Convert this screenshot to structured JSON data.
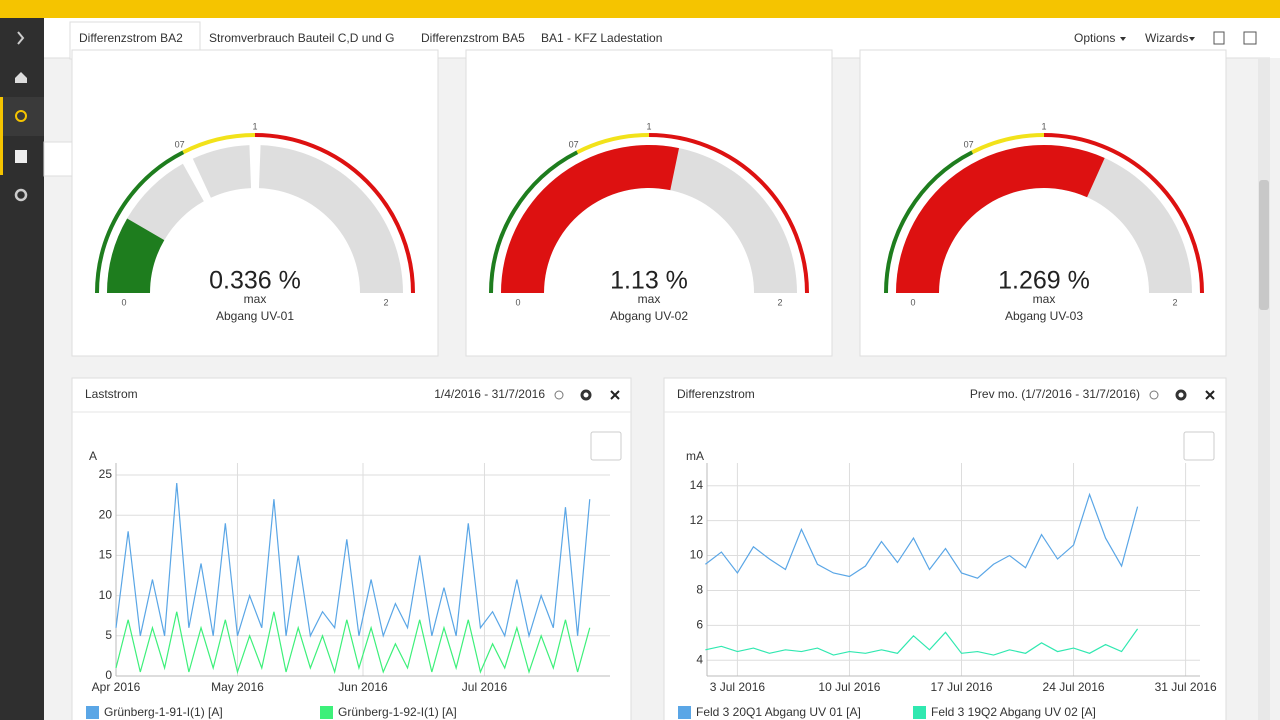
{
  "tabs": [
    "Differenzstrom BA2",
    "Stromverbrauch Bauteil C,D und G",
    "Differenzstrom BA5",
    "BA1 - KFZ Ladestation"
  ],
  "menu": [
    "Options",
    "Wizards"
  ],
  "gauges": [
    {
      "value": 0.336,
      "value_label": "0.336 %",
      "caption": "max",
      "name": "Abgang UV-01",
      "ticks": [
        0,
        {
          "value": 0.7,
          "label": "07"
        },
        1,
        2
      ],
      "colors": [
        "#1e7d1e",
        "#f2e21a",
        "#dd1111"
      ]
    },
    {
      "value": 1.13,
      "value_label": "1.13 %",
      "caption": "max",
      "name": "Abgang UV-02",
      "ticks": [
        0,
        {
          "value": 0.7,
          "label": "07"
        },
        1,
        2
      ],
      "colors": [
        "#1e7d1e",
        "#f2e21a",
        "#dd1111"
      ]
    },
    {
      "value": 1.269,
      "value_label": "1.269 %",
      "caption": "max",
      "name": "Abgang UV-03",
      "ticks": [
        0,
        {
          "value": 0.7,
          "label": "07"
        },
        1,
        2
      ],
      "colors": [
        "#1e7d1e",
        "#f2e21a",
        "#dd1111"
      ]
    }
  ],
  "chart_data": [
    {
      "type": "line",
      "title": "Laststrom",
      "range_label": "1/4/2016 - 31/7/2016",
      "y_label": "A",
      "grid": true,
      "x": [
        0,
        3,
        6,
        9,
        12,
        15,
        18,
        21,
        24,
        27,
        30,
        33,
        36,
        39,
        42,
        45,
        48,
        51,
        54,
        57,
        60,
        63,
        66,
        69,
        72,
        75,
        78,
        81,
        84,
        87,
        90,
        93,
        96,
        99,
        102,
        105,
        108,
        111,
        114,
        117
      ],
      "xlim": [
        0,
        122
      ],
      "xticks": [
        {
          "value": 0,
          "label": "Apr 2016"
        },
        {
          "value": 30,
          "label": "May 2016"
        },
        {
          "value": 61,
          "label": "Jun 2016"
        },
        {
          "value": 91,
          "label": "Jul 2016"
        }
      ],
      "ylim": [
        0,
        26.5
      ],
      "yticks": [
        0,
        5,
        10,
        15,
        20,
        25
      ],
      "series": [
        {
          "name": "Grünberg-1-91-I(1) [A]",
          "color": "#5aa6e6",
          "values": [
            6,
            18,
            5,
            12,
            5,
            24,
            6,
            14,
            5,
            19,
            5,
            10,
            6,
            22,
            5,
            15,
            5,
            8,
            6,
            17,
            5,
            12,
            5,
            9,
            6,
            15,
            5,
            11,
            5,
            19,
            6,
            8,
            5,
            12,
            5,
            10,
            6,
            21,
            5,
            22
          ]
        },
        {
          "name": "Grünberg-1-92-I(1) [A]",
          "color": "#3df07a",
          "values": [
            1,
            7,
            0.5,
            6,
            1,
            8,
            0.5,
            6,
            1,
            7,
            0.5,
            5,
            1,
            8,
            0.5,
            6,
            1,
            5,
            0.5,
            7,
            1,
            6,
            0.5,
            4,
            1,
            7,
            0.5,
            6,
            1,
            7,
            0.5,
            4,
            1,
            6,
            0.5,
            5,
            1,
            7,
            0.5,
            6
          ]
        }
      ]
    },
    {
      "type": "line",
      "title": "Differenzstrom",
      "range_label": "Prev mo. (1/7/2016 - 31/7/2016)",
      "y_label": "mA",
      "grid": true,
      "x": [
        1,
        2,
        3,
        4,
        5,
        6,
        7,
        8,
        9,
        10,
        11,
        12,
        13,
        14,
        15,
        16,
        17,
        18,
        19,
        20,
        21,
        22,
        23,
        24,
        25,
        26,
        27,
        28
      ],
      "xlim": [
        1.1,
        31.9
      ],
      "xticks": [
        {
          "value": 3,
          "label": "3 Jul 2016"
        },
        {
          "value": 10,
          "label": "10 Jul 2016"
        },
        {
          "value": 17,
          "label": "17 Jul 2016"
        },
        {
          "value": 24,
          "label": "24 Jul 2016"
        },
        {
          "value": 31,
          "label": "31 Jul 2016"
        }
      ],
      "ylim": [
        3.1,
        15.3
      ],
      "yticks": [
        4,
        6,
        8,
        10,
        12,
        14
      ],
      "series": [
        {
          "name": "Feld 3 20Q1 Abgang UV 01 [A]",
          "color": "#5aa6e6",
          "values": [
            9.5,
            10.2,
            9,
            10.5,
            9.8,
            9.2,
            11.5,
            9.5,
            9,
            8.8,
            9.4,
            10.8,
            9.6,
            11,
            9.2,
            10.4,
            9,
            8.7,
            9.5,
            10,
            9.3,
            11.2,
            9.8,
            10.6,
            13.5,
            11,
            9.4,
            12.8
          ]
        },
        {
          "name": "Feld 3 19Q2 Abgang UV 02 [A]",
          "color": "#30e8b0",
          "values": [
            4.6,
            4.8,
            4.5,
            4.7,
            4.4,
            4.6,
            4.5,
            4.7,
            4.3,
            4.5,
            4.4,
            4.6,
            4.4,
            5.4,
            4.6,
            5.6,
            4.4,
            4.5,
            4.3,
            4.6,
            4.4,
            5,
            4.5,
            4.7,
            4.4,
            4.9,
            4.5,
            5.8
          ]
        }
      ]
    }
  ]
}
